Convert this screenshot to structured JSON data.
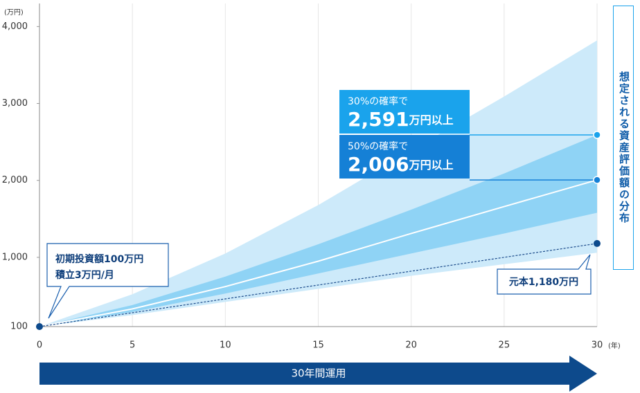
{
  "chart_data": {
    "type": "band",
    "y_unit": "(万円)",
    "x_unit": "(年)",
    "x": [
      0,
      5,
      10,
      15,
      20,
      25,
      30
    ],
    "outer_band": {
      "color": "#cdeafa",
      "upper": [
        100,
        520,
        1050,
        1680,
        2390,
        3090,
        3820
      ],
      "lower": [
        100,
        250,
        420,
        590,
        760,
        910,
        1060
      ]
    },
    "inner_band": {
      "color": "#8fd3f5",
      "upper": [
        100,
        380,
        750,
        1170,
        1620,
        2090,
        2591
      ],
      "lower": [
        100,
        290,
        530,
        790,
        1050,
        1310,
        1580
      ]
    },
    "median": {
      "color": "#ffffff",
      "values": [
        100,
        330,
        620,
        950,
        1310,
        1660,
        2006
      ]
    },
    "principal": {
      "color": "#1a4a8a",
      "values": [
        100,
        280,
        460,
        640,
        820,
        1000,
        1180
      ]
    },
    "xlim": [
      0,
      30
    ],
    "xticks": [
      0,
      5,
      10,
      15,
      20,
      25,
      30
    ],
    "ylim": [
      100,
      4300
    ],
    "yticks": [
      100,
      {
        "value": 1000,
        "label": "1,000"
      },
      {
        "value": 2000,
        "label": "2,000"
      },
      {
        "value": 3000,
        "label": "3,000"
      },
      {
        "value": 4000,
        "label": "4,000"
      }
    ],
    "grid": true,
    "callouts": [
      {
        "text": "30%の確率で",
        "value": 2591,
        "value_label": "2,591",
        "suffix": "万円以上",
        "color": "#1aa3ec"
      },
      {
        "text": "50%の確率で",
        "value": 2006,
        "value_label": "2,006",
        "suffix": "万円以上",
        "color": "#1580d6"
      }
    ],
    "start_note": {
      "line1": "初期投資額100万円",
      "line2": "積立3万円/月"
    },
    "principal_note": "元本1,180万円",
    "side_label": "想定される資産評価額の分布",
    "period_label": "30年間運用"
  }
}
